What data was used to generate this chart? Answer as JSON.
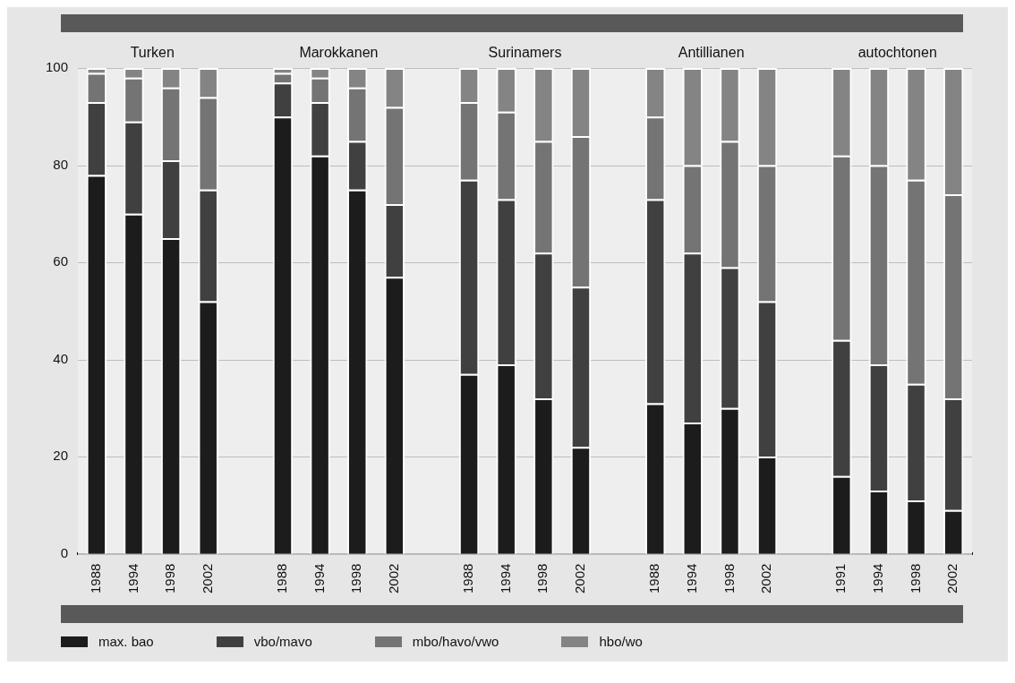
{
  "chart_data": {
    "type": "bar",
    "stacked": true,
    "categories": [
      "1988",
      "1994",
      "1998",
      "2002",
      null,
      "1988",
      "1994",
      "1998",
      "2002",
      null,
      "1988",
      "1994",
      "1998",
      "2002",
      null,
      "1988",
      "1994",
      "1998",
      "2002",
      null,
      "1991",
      "1994",
      "1998",
      "2002"
    ],
    "series": [
      {
        "name": "max. bao",
        "color": "#1c1c1c",
        "values": [
          78,
          70,
          65,
          52,
          null,
          90,
          82,
          75,
          57,
          null,
          37,
          39,
          32,
          22,
          null,
          31,
          27,
          30,
          20,
          null,
          16,
          13,
          11,
          9
        ]
      },
      {
        "name": "vbo/mavo",
        "color": "#404040",
        "values": [
          15,
          19,
          16,
          23,
          null,
          7,
          11,
          10,
          15,
          null,
          40,
          34,
          30,
          33,
          null,
          42,
          35,
          29,
          32,
          null,
          28,
          26,
          24,
          23
        ]
      },
      {
        "name": "mbo/havo/vwo",
        "color": "#747474",
        "values": [
          6,
          9,
          15,
          19,
          null,
          2,
          5,
          11,
          20,
          null,
          16,
          18,
          23,
          31,
          null,
          17,
          18,
          26,
          28,
          null,
          38,
          41,
          42,
          42
        ]
      },
      {
        "name": "hbo/wo",
        "color": "#848484",
        "values": [
          1,
          2,
          4,
          6,
          null,
          1,
          2,
          4,
          8,
          null,
          7,
          9,
          15,
          14,
          null,
          10,
          20,
          15,
          20,
          null,
          18,
          20,
          23,
          26
        ]
      }
    ],
    "annotations": [
      "Turken",
      "Marokkanen",
      "Surinamers",
      "Antillianen",
      "autochtonen"
    ],
    "ylim": [
      0,
      100
    ],
    "yticks": [
      0,
      20,
      40,
      60,
      80,
      100
    ],
    "grid": "y",
    "legend": "bottom"
  }
}
